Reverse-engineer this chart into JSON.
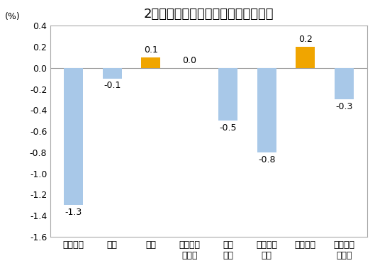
{
  "title": "2月份居民消费价格分类别环比涨跌幅",
  "ylabel": "(%)",
  "categories": [
    "食品烟酒",
    "衣着",
    "居住",
    "生活用品\n及服务",
    "交通\n通信",
    "教育文化\n娱乐",
    "医疗保健",
    "其他用品\n及服务"
  ],
  "values": [
    -1.3,
    -0.1,
    0.1,
    0.0,
    -0.5,
    -0.8,
    0.2,
    -0.3
  ],
  "bar_colors_positive": "#F0A500",
  "bar_colors_negative": "#A8C8E8",
  "ylim": [
    -1.6,
    0.4
  ],
  "yticks": [
    -1.6,
    -1.4,
    -1.2,
    -1.0,
    -0.8,
    -0.6,
    -0.4,
    -0.2,
    0.0,
    0.2,
    0.4
  ],
  "background_color": "#ffffff",
  "title_fontsize": 13,
  "label_fontsize": 9,
  "tick_fontsize": 9,
  "value_fontsize": 9,
  "bar_width": 0.5
}
